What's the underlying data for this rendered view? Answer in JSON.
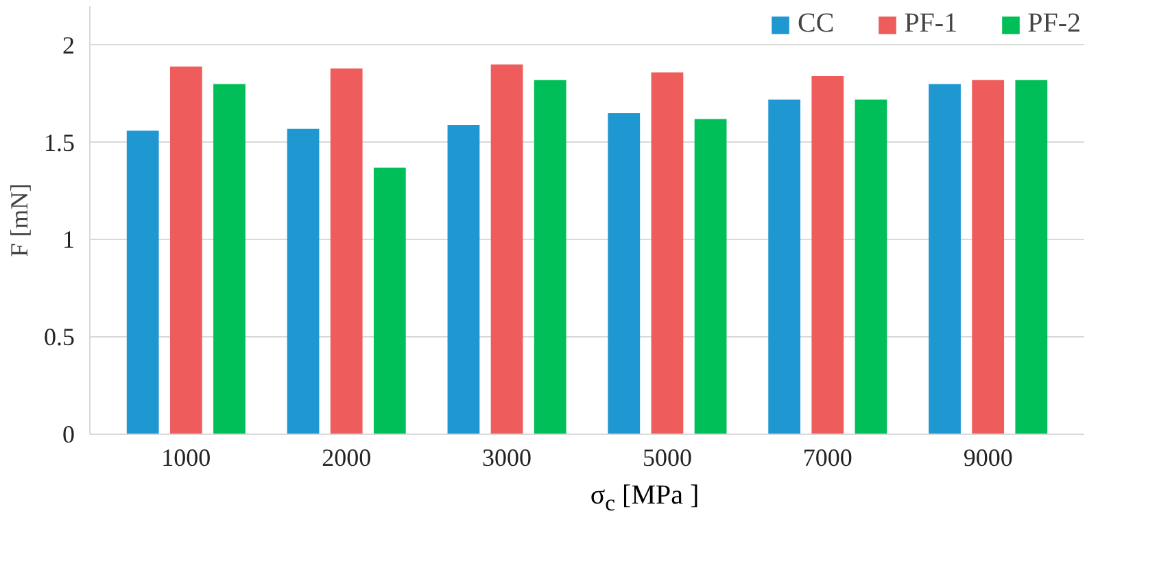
{
  "chart_data": {
    "type": "bar",
    "xlabel": "σ$_{c}$ [MPa ]",
    "ylabel": "F [mN]",
    "categories": [
      "1000",
      "2000",
      "3000",
      "5000",
      "7000",
      "9000"
    ],
    "series": [
      {
        "name": "CC",
        "color": "#1f97d0",
        "values": [
          1.56,
          1.57,
          1.59,
          1.65,
          1.72,
          1.8
        ]
      },
      {
        "name": "PF-1",
        "color": "#ee5c5c",
        "values": [
          1.89,
          1.88,
          1.9,
          1.86,
          1.84,
          1.82
        ]
      },
      {
        "name": "PF-2",
        "color": "#00bf58",
        "values": [
          1.8,
          1.37,
          1.82,
          1.62,
          1.72,
          1.82
        ]
      }
    ],
    "ylim": [
      0,
      2.2
    ],
    "yticks": [
      0,
      0.5,
      1,
      1.5,
      2
    ],
    "grid": "y",
    "legend": "top right"
  }
}
